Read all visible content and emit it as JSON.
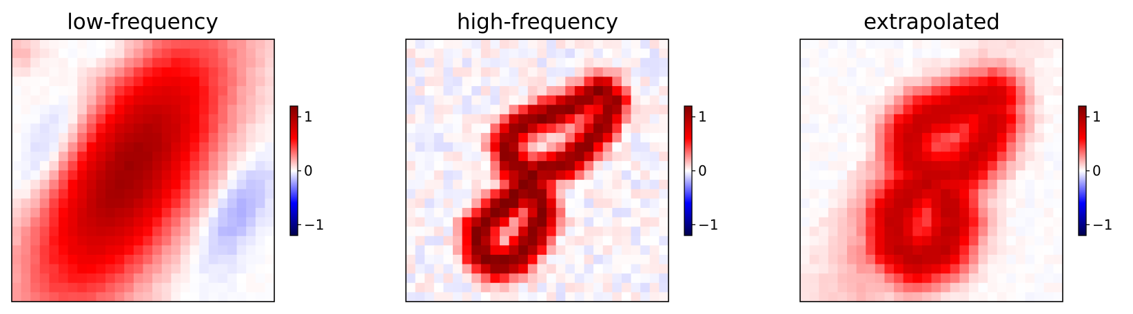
{
  "chart_data": [
    {
      "type": "heatmap",
      "title": "low-frequency",
      "grid": false,
      "rows": 28,
      "cols": 28,
      "colormap": "seismic",
      "clim": [
        -1.2,
        1.2
      ],
      "colorbar": {
        "ticks": [
          1,
          0,
          -1
        ],
        "tick_labels": [
          "1",
          "0",
          "−1"
        ]
      },
      "pattern": "broad diagonal blob",
      "blobs": [
        {
          "x": 0.45,
          "y": 0.5,
          "a": 1.05,
          "sigma_along": 0.4,
          "sigma_across": 0.17,
          "angle_deg": 60
        },
        {
          "x": 0.16,
          "y": 0.4,
          "a": -0.25,
          "sigma_along": 0.18,
          "sigma_across": 0.07,
          "angle_deg": 60
        },
        {
          "x": 0.85,
          "y": 0.66,
          "a": -0.22,
          "sigma_along": 0.17,
          "sigma_across": 0.07,
          "angle_deg": 60
        },
        {
          "x": 0.4,
          "y": 0.05,
          "a": -0.12,
          "sigma_along": 0.1,
          "sigma_across": 0.05,
          "angle_deg": 0
        },
        {
          "x": 0.03,
          "y": 0.05,
          "a": 0.15,
          "sigma_along": 0.06,
          "sigma_across": 0.05,
          "angle_deg": 0
        }
      ],
      "noise": 0.02
    },
    {
      "type": "heatmap",
      "title": "high-frequency",
      "grid": false,
      "rows": 28,
      "cols": 28,
      "colormap": "seismic",
      "clim": [
        -1.2,
        1.2
      ],
      "colorbar": {
        "ticks": [
          1,
          0,
          -1
        ],
        "tick_labels": [
          "1",
          "0",
          "−1"
        ]
      },
      "pattern": "digit 8 stroke",
      "strokes": [
        {
          "points": [
            [
              0.75,
              0.19
            ],
            [
              0.62,
              0.26
            ],
            [
              0.5,
              0.3
            ],
            [
              0.42,
              0.34
            ],
            [
              0.38,
              0.4
            ],
            [
              0.4,
              0.48
            ],
            [
              0.47,
              0.51
            ],
            [
              0.6,
              0.48
            ],
            [
              0.67,
              0.42
            ],
            [
              0.74,
              0.34
            ],
            [
              0.79,
              0.24
            ]
          ],
          "w": 0.04,
          "a": 1.15
        },
        {
          "points": [
            [
              0.48,
              0.52
            ],
            [
              0.42,
              0.6
            ],
            [
              0.34,
              0.66
            ],
            [
              0.28,
              0.72
            ],
            [
              0.28,
              0.81
            ],
            [
              0.34,
              0.86
            ],
            [
              0.42,
              0.84
            ],
            [
              0.48,
              0.76
            ],
            [
              0.52,
              0.67
            ],
            [
              0.5,
              0.58
            ]
          ],
          "w": 0.042,
          "a": 1.2
        }
      ],
      "noise": 0.08
    },
    {
      "type": "heatmap",
      "title": "extrapolated",
      "grid": false,
      "rows": 28,
      "cols": 28,
      "colormap": "seismic",
      "clim": [
        -1.2,
        1.2
      ],
      "colorbar": {
        "ticks": [
          1,
          0,
          -1
        ],
        "tick_labels": [
          "1",
          "0",
          "−1"
        ]
      },
      "pattern": "blurred digit 8",
      "strokes": [
        {
          "points": [
            [
              0.74,
              0.22
            ],
            [
              0.6,
              0.26
            ],
            [
              0.48,
              0.3
            ],
            [
              0.42,
              0.36
            ],
            [
              0.42,
              0.46
            ],
            [
              0.5,
              0.52
            ],
            [
              0.62,
              0.5
            ],
            [
              0.7,
              0.4
            ],
            [
              0.74,
              0.3
            ]
          ],
          "w": 0.075,
          "a": 0.85
        },
        {
          "points": [
            [
              0.52,
              0.52
            ],
            [
              0.42,
              0.58
            ],
            [
              0.36,
              0.66
            ],
            [
              0.36,
              0.78
            ],
            [
              0.44,
              0.84
            ],
            [
              0.54,
              0.8
            ],
            [
              0.58,
              0.7
            ],
            [
              0.56,
              0.6
            ]
          ],
          "w": 0.08,
          "a": 0.9
        }
      ],
      "blobs": [
        {
          "x": 0.47,
          "y": 0.55,
          "a": 0.5,
          "sigma_along": 0.32,
          "sigma_across": 0.14,
          "angle_deg": 60
        },
        {
          "x": 0.15,
          "y": 0.38,
          "a": -0.22,
          "sigma_along": 0.16,
          "sigma_across": 0.06,
          "angle_deg": 60
        },
        {
          "x": 0.86,
          "y": 0.72,
          "a": -0.2,
          "sigma_along": 0.15,
          "sigma_across": 0.06,
          "angle_deg": 60
        },
        {
          "x": 0.4,
          "y": 0.07,
          "a": -0.2,
          "sigma_along": 0.14,
          "sigma_across": 0.04,
          "angle_deg": 0
        },
        {
          "x": 0.55,
          "y": 0.95,
          "a": -0.15,
          "sigma_along": 0.12,
          "sigma_across": 0.04,
          "angle_deg": 0
        }
      ],
      "noise": 0.03
    }
  ]
}
